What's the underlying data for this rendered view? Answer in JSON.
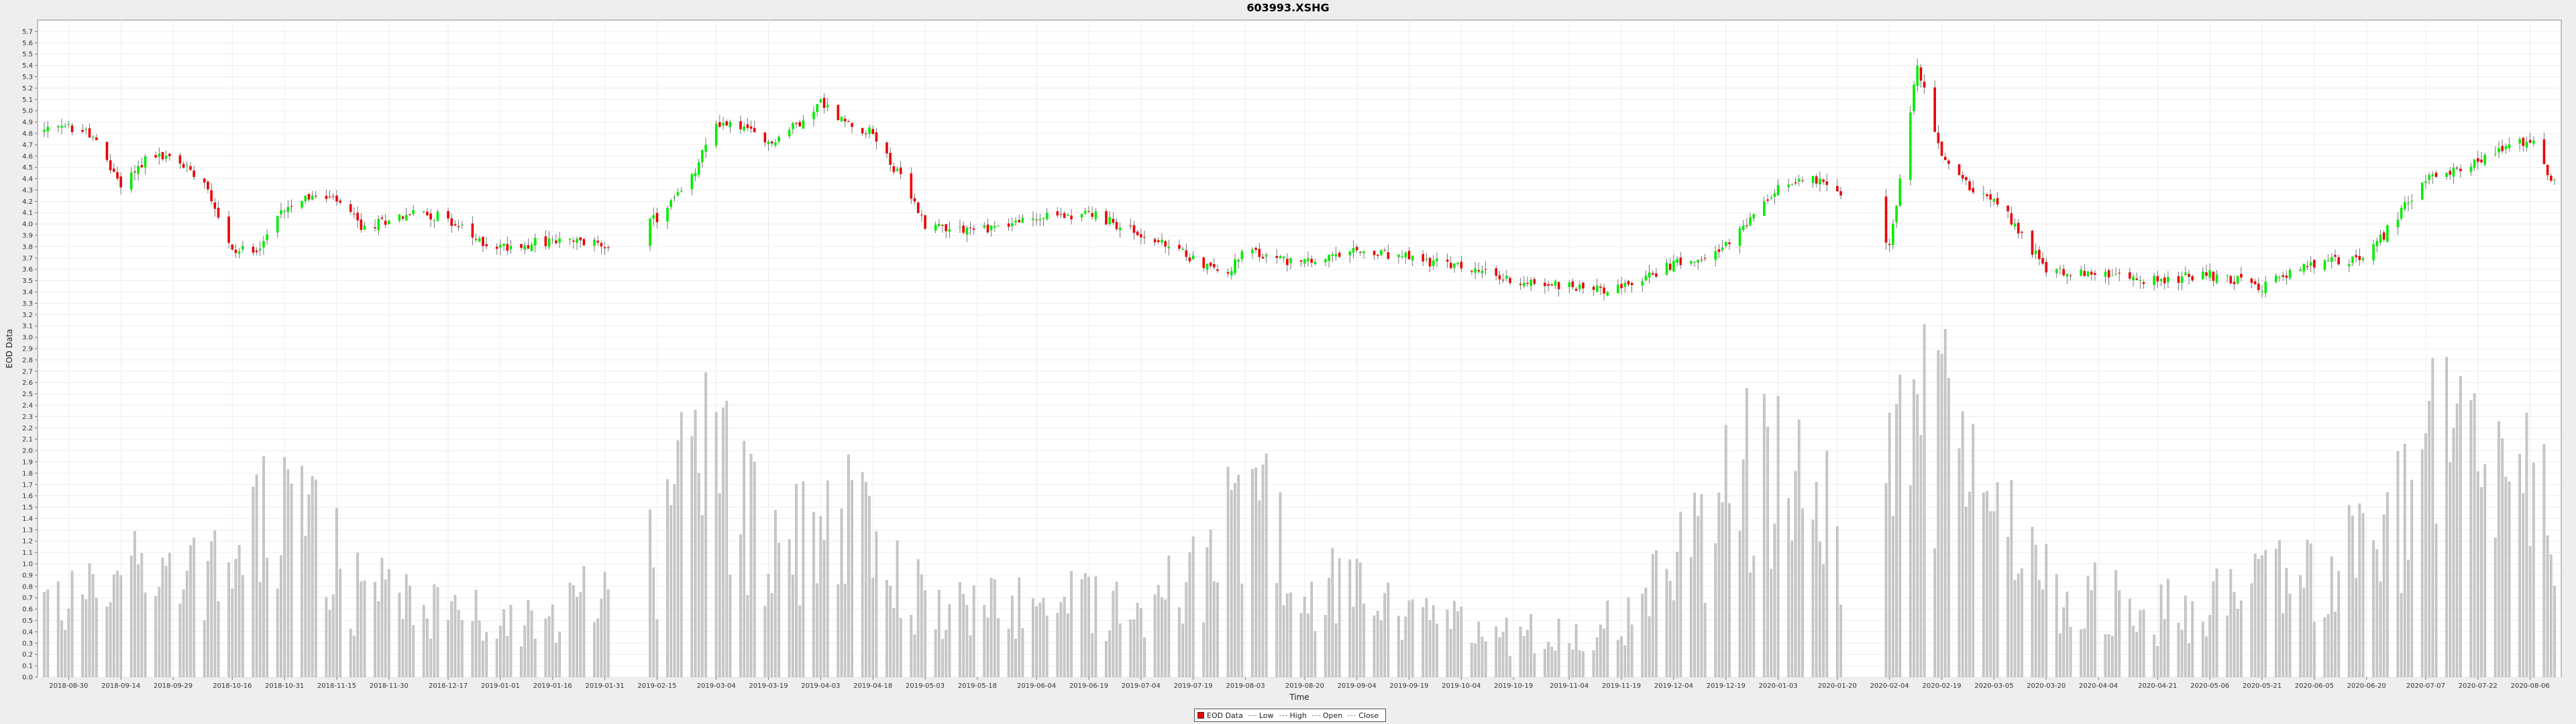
{
  "chart_data": {
    "type": "candlestick",
    "title": "603993.XSHG",
    "xlabel": "Time",
    "ylabel": "EOD Data",
    "ylim": [
      0.0,
      5.8
    ],
    "y_ticks": [
      "0.0",
      "0.1",
      "0.2",
      "0.3",
      "0.4",
      "0.5",
      "0.6",
      "0.7",
      "0.8",
      "0.9",
      "1.0",
      "1.1",
      "1.2",
      "1.3",
      "1.4",
      "1.5",
      "1.6",
      "1.7",
      "1.8",
      "1.9",
      "2.0",
      "2.1",
      "2.2",
      "2.3",
      "2.4",
      "2.5",
      "2.6",
      "2.7",
      "2.8",
      "2.9",
      "3.0",
      "3.1",
      "3.2",
      "3.3",
      "3.4",
      "3.5",
      "3.6",
      "3.7",
      "3.8",
      "3.9",
      "4.0",
      "4.1",
      "4.2",
      "4.3",
      "4.4",
      "4.5",
      "4.6",
      "4.7",
      "4.8",
      "4.9",
      "5.0",
      "5.1",
      "5.2",
      "5.3",
      "5.4",
      "5.5",
      "5.6",
      "5.7"
    ],
    "x_ticks": [
      "2018-08-30",
      "2018-09-14",
      "2018-09-29",
      "2018-10-16",
      "2018-10-31",
      "2018-11-15",
      "2018-11-30",
      "2018-12-17",
      "2019-01-01",
      "2019-01-16",
      "2019-01-31",
      "2019-02-15",
      "2019-03-04",
      "2019-03-19",
      "2019-04-03",
      "2019-04-18",
      "2019-05-03",
      "2019-05-18",
      "2019-06-04",
      "2019-06-19",
      "2019-07-04",
      "2019-07-19",
      "2019-08-03",
      "2019-08-20",
      "2019-09-04",
      "2019-09-19",
      "2019-10-04",
      "2019-10-19",
      "2019-11-04",
      "2019-11-19",
      "2019-12-04",
      "2019-12-19",
      "2020-01-03",
      "2020-01-20",
      "2020-02-04",
      "2020-02-19",
      "2020-03-05",
      "2020-03-20",
      "2020-04-04",
      "2020-04-21",
      "2020-05-06",
      "2020-05-21",
      "2020-06-05",
      "2020-06-20",
      "2020-07-07",
      "2020-07-22",
      "2020-08-06"
    ],
    "grid": true,
    "legend_position": "bottom-center",
    "legend": [
      "EOD Data",
      "Low",
      "High",
      "Open",
      "Close"
    ],
    "colors": {
      "up": "#00ee00",
      "down": "#ee0000",
      "volume": "#c8c8c8",
      "wick": "#555555"
    },
    "x_start": "2018-08-23",
    "x_end": "2020-08-13",
    "price_anchors": [
      [
        "2018-08-23",
        4.82
      ],
      [
        "2018-08-30",
        4.85
      ],
      [
        "2018-09-05",
        4.8
      ],
      [
        "2018-09-14",
        4.35
      ],
      [
        "2018-09-22",
        4.6
      ],
      [
        "2018-09-29",
        4.58
      ],
      [
        "2018-10-08",
        4.4
      ],
      [
        "2018-10-16",
        3.75
      ],
      [
        "2018-10-24",
        3.8
      ],
      [
        "2018-10-31",
        4.15
      ],
      [
        "2018-11-06",
        4.25
      ],
      [
        "2018-11-15",
        4.2
      ],
      [
        "2018-11-23",
        3.95
      ],
      [
        "2018-11-30",
        4.05
      ],
      [
        "2018-12-08",
        4.1
      ],
      [
        "2018-12-17",
        4.05
      ],
      [
        "2018-12-25",
        3.85
      ],
      [
        "2019-01-01",
        3.8
      ],
      [
        "2019-01-16",
        3.85
      ],
      [
        "2019-01-31",
        3.82
      ],
      [
        "2019-02-15",
        4.05
      ],
      [
        "2019-02-25",
        4.4
      ],
      [
        "2019-03-04",
        4.9
      ],
      [
        "2019-03-12",
        4.85
      ],
      [
        "2019-03-19",
        4.7
      ],
      [
        "2019-03-28",
        4.9
      ],
      [
        "2019-04-03",
        5.08
      ],
      [
        "2019-04-10",
        4.9
      ],
      [
        "2019-04-18",
        4.8
      ],
      [
        "2019-04-26",
        4.4
      ],
      [
        "2019-05-03",
        4.0
      ],
      [
        "2019-05-18",
        3.95
      ],
      [
        "2019-06-04",
        4.05
      ],
      [
        "2019-06-19",
        4.1
      ],
      [
        "2019-07-04",
        3.9
      ],
      [
        "2019-07-19",
        3.7
      ],
      [
        "2019-07-28",
        3.55
      ],
      [
        "2019-08-03",
        3.75
      ],
      [
        "2019-08-20",
        3.65
      ],
      [
        "2019-09-04",
        3.75
      ],
      [
        "2019-09-19",
        3.7
      ],
      [
        "2019-10-04",
        3.62
      ],
      [
        "2019-10-19",
        3.5
      ],
      [
        "2019-11-04",
        3.45
      ],
      [
        "2019-11-19",
        3.42
      ],
      [
        "2019-12-04",
        3.65
      ],
      [
        "2019-12-19",
        3.8
      ],
      [
        "2020-01-03",
        4.3
      ],
      [
        "2020-01-12",
        4.45
      ],
      [
        "2020-01-20",
        4.25
      ],
      [
        "2020-02-04",
        3.8
      ],
      [
        "2020-02-12",
        5.4
      ],
      [
        "2020-02-19",
        4.6
      ],
      [
        "2020-02-28",
        4.3
      ],
      [
        "2020-03-05",
        4.25
      ],
      [
        "2020-03-20",
        3.6
      ],
      [
        "2020-04-04",
        3.55
      ],
      [
        "2020-04-21",
        3.5
      ],
      [
        "2020-05-06",
        3.55
      ],
      [
        "2020-05-21",
        3.45
      ],
      [
        "2020-06-05",
        3.65
      ],
      [
        "2020-06-20",
        3.7
      ],
      [
        "2020-07-07",
        4.4
      ],
      [
        "2020-07-22",
        4.55
      ],
      [
        "2020-08-06",
        4.75
      ],
      [
        "2020-08-13",
        4.35
      ]
    ],
    "volume_anchors": [
      [
        "2018-08-23",
        0.7
      ],
      [
        "2018-09-05",
        0.8
      ],
      [
        "2018-09-20",
        1.1
      ],
      [
        "2018-10-10",
        0.9
      ],
      [
        "2018-10-25",
        1.4
      ],
      [
        "2018-11-06",
        1.6
      ],
      [
        "2018-11-20",
        0.8
      ],
      [
        "2018-12-10",
        0.7
      ],
      [
        "2019-01-01",
        0.5
      ],
      [
        "2019-01-25",
        0.7
      ],
      [
        "2019-02-15",
        1.1
      ],
      [
        "2019-02-28",
        2.2
      ],
      [
        "2019-03-10",
        1.6
      ],
      [
        "2019-03-25",
        1.2
      ],
      [
        "2019-04-08",
        1.7
      ],
      [
        "2019-04-25",
        0.9
      ],
      [
        "2019-05-10",
        0.6
      ],
      [
        "2019-06-10",
        0.7
      ],
      [
        "2019-07-05",
        0.7
      ],
      [
        "2019-07-25",
        1.0
      ],
      [
        "2019-08-03",
        1.9
      ],
      [
        "2019-08-20",
        0.9
      ],
      [
        "2019-09-10",
        0.7
      ],
      [
        "2019-10-10",
        0.4
      ],
      [
        "2019-11-10",
        0.4
      ],
      [
        "2019-11-25",
        0.7
      ],
      [
        "2019-12-10",
        1.2
      ],
      [
        "2019-12-25",
        1.9
      ],
      [
        "2020-01-10",
        2.0
      ],
      [
        "2020-01-25",
        0.9
      ],
      [
        "2020-02-10",
        2.5
      ],
      [
        "2020-02-20",
        2.4
      ],
      [
        "2020-03-05",
        1.4
      ],
      [
        "2020-03-25",
        0.8
      ],
      [
        "2020-04-20",
        0.6
      ],
      [
        "2020-05-10",
        0.7
      ],
      [
        "2020-06-05",
        1.0
      ],
      [
        "2020-06-25",
        1.2
      ],
      [
        "2020-07-07",
        2.2
      ],
      [
        "2020-07-22",
        1.8
      ],
      [
        "2020-08-06",
        2.0
      ],
      [
        "2020-08-13",
        1.5
      ]
    ],
    "gaps": [
      [
        "2019-02-02",
        "2019-02-12"
      ],
      [
        "2020-01-22",
        "2020-02-02"
      ]
    ]
  }
}
